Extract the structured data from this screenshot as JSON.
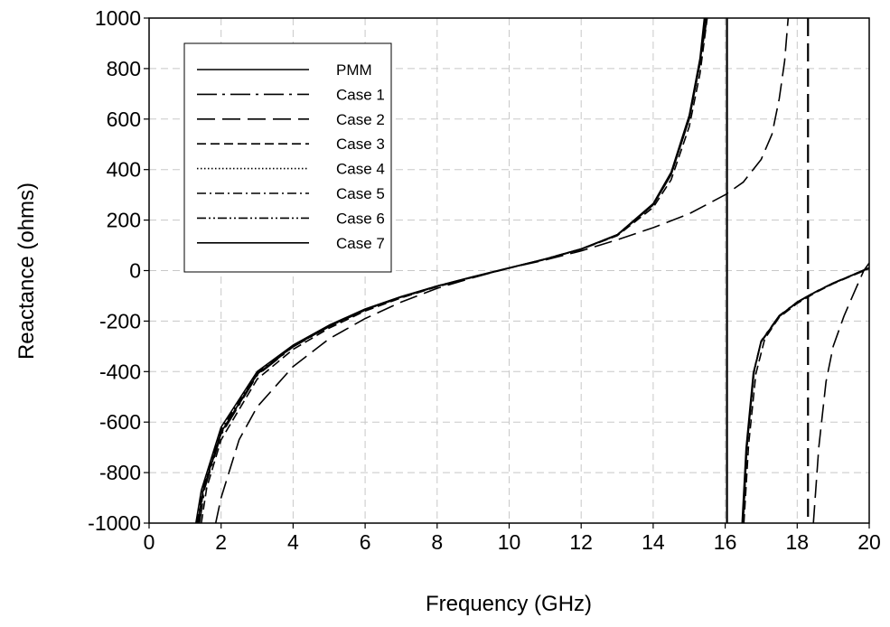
{
  "chart_data": {
    "type": "line",
    "title": "",
    "xlabel": "Frequency (GHz)",
    "ylabel": "Reactance (ohms)",
    "xlim": [
      0,
      20
    ],
    "ylim": [
      -1000,
      1000
    ],
    "x_ticks": [
      0,
      2,
      4,
      6,
      8,
      10,
      12,
      14,
      16,
      18,
      20
    ],
    "y_ticks": [
      -1000,
      -800,
      -600,
      -400,
      -200,
      0,
      200,
      400,
      600,
      800,
      1000
    ],
    "grid": "dashed, both axes",
    "legend_position": "top-left",
    "series": [
      {
        "name": "PMM",
        "dash": "solid",
        "points": [
          [
            1.35,
            -1000
          ],
          [
            1.5,
            -870
          ],
          [
            2,
            -640
          ],
          [
            3,
            -410
          ],
          [
            4,
            -300
          ],
          [
            5,
            -220
          ],
          [
            6,
            -155
          ],
          [
            7,
            -105
          ],
          [
            8,
            -62
          ],
          [
            9,
            -25
          ],
          [
            10,
            10
          ],
          [
            11,
            45
          ],
          [
            12,
            85
          ],
          [
            13,
            140
          ],
          [
            14,
            260
          ],
          [
            14.5,
            380
          ],
          [
            15,
            600
          ],
          [
            15.3,
            820
          ],
          [
            15.45,
            1000
          ]
        ],
        "segments2": [
          [
            16.5,
            -1000
          ],
          [
            16.6,
            -700
          ],
          [
            16.8,
            -400
          ],
          [
            17,
            -280
          ],
          [
            17.5,
            -180
          ],
          [
            18,
            -125
          ],
          [
            18.5,
            -85
          ],
          [
            19,
            -50
          ],
          [
            19.5,
            -20
          ],
          [
            20,
            10
          ]
        ],
        "vertical_line": 16.05
      },
      {
        "name": "Case 1",
        "dash": "long-dash-dot",
        "points": [
          [
            1.4,
            -1000
          ],
          [
            1.55,
            -860
          ],
          [
            2,
            -650
          ],
          [
            3,
            -415
          ],
          [
            4,
            -302
          ],
          [
            5,
            -222
          ],
          [
            6,
            -157
          ],
          [
            7,
            -106
          ],
          [
            8,
            -63
          ],
          [
            9,
            -26
          ],
          [
            10,
            10
          ],
          [
            11,
            45
          ],
          [
            12,
            85
          ],
          [
            13,
            142
          ],
          [
            14,
            262
          ],
          [
            14.5,
            385
          ],
          [
            15,
            610
          ],
          [
            15.3,
            830
          ],
          [
            15.5,
            1000
          ]
        ],
        "segments2": [
          [
            16.48,
            -1000
          ],
          [
            16.6,
            -690
          ],
          [
            16.8,
            -395
          ],
          [
            17,
            -278
          ],
          [
            17.5,
            -178
          ],
          [
            18,
            -124
          ],
          [
            18.5,
            -84
          ],
          [
            19,
            -49
          ],
          [
            19.5,
            -19
          ],
          [
            20,
            11
          ]
        ]
      },
      {
        "name": "Case 2",
        "dash": "long-dash",
        "points": [
          [
            1.85,
            -1000
          ],
          [
            2,
            -900
          ],
          [
            2.5,
            -670
          ],
          [
            3,
            -540
          ],
          [
            4,
            -380
          ],
          [
            5,
            -270
          ],
          [
            6,
            -190
          ],
          [
            7,
            -125
          ],
          [
            8,
            -70
          ],
          [
            9,
            -28
          ],
          [
            10,
            10
          ],
          [
            11,
            42
          ],
          [
            12,
            78
          ],
          [
            13,
            122
          ],
          [
            14,
            170
          ],
          [
            15,
            225
          ],
          [
            16,
            300
          ],
          [
            16.5,
            350
          ],
          [
            17,
            440
          ],
          [
            17.3,
            540
          ],
          [
            17.5,
            680
          ],
          [
            17.65,
            830
          ],
          [
            17.75,
            1000
          ]
        ],
        "segments2": [
          [
            18.45,
            -1000
          ],
          [
            18.6,
            -700
          ],
          [
            18.8,
            -440
          ],
          [
            19,
            -300
          ],
          [
            19.3,
            -180
          ],
          [
            19.6,
            -80
          ],
          [
            19.85,
            0
          ],
          [
            20,
            30
          ]
        ],
        "vertical_line": 18.3
      },
      {
        "name": "Case 3",
        "dash": "dash",
        "points": [
          [
            1.45,
            -1000
          ],
          [
            1.6,
            -860
          ],
          [
            2,
            -670
          ],
          [
            3,
            -430
          ],
          [
            4,
            -312
          ],
          [
            5,
            -228
          ],
          [
            6,
            -160
          ],
          [
            7,
            -108
          ],
          [
            8,
            -64
          ],
          [
            9,
            -26
          ],
          [
            10,
            10
          ],
          [
            11,
            44
          ],
          [
            12,
            84
          ],
          [
            13,
            138
          ],
          [
            14,
            250
          ],
          [
            14.5,
            360
          ],
          [
            15,
            570
          ],
          [
            15.3,
            780
          ],
          [
            15.5,
            1000
          ]
        ],
        "segments2": [
          [
            16.52,
            -1000
          ],
          [
            16.65,
            -690
          ],
          [
            16.85,
            -410
          ],
          [
            17.1,
            -270
          ],
          [
            17.5,
            -185
          ],
          [
            18,
            -130
          ],
          [
            18.5,
            -88
          ],
          [
            19,
            -52
          ],
          [
            19.5,
            -22
          ],
          [
            20,
            8
          ]
        ]
      },
      {
        "name": "Case 4",
        "dash": "dot",
        "points": [
          [
            1.35,
            -1000
          ],
          [
            1.5,
            -870
          ],
          [
            2,
            -640
          ],
          [
            3,
            -410
          ],
          [
            4,
            -300
          ],
          [
            5,
            -220
          ],
          [
            6,
            -155
          ],
          [
            7,
            -105
          ],
          [
            8,
            -62
          ],
          [
            9,
            -25
          ],
          [
            10,
            10
          ],
          [
            11,
            45
          ],
          [
            12,
            85
          ],
          [
            13,
            140
          ],
          [
            14,
            260
          ],
          [
            14.5,
            380
          ],
          [
            15,
            600
          ],
          [
            15.3,
            820
          ],
          [
            15.45,
            1000
          ]
        ],
        "segments2": [
          [
            16.5,
            -1000
          ],
          [
            16.6,
            -700
          ],
          [
            16.8,
            -400
          ],
          [
            17,
            -280
          ],
          [
            17.5,
            -180
          ],
          [
            18,
            -125
          ],
          [
            18.5,
            -85
          ],
          [
            19,
            -50
          ],
          [
            19.5,
            -20
          ],
          [
            20,
            10
          ]
        ]
      },
      {
        "name": "Case 5",
        "dash": "dash-dot",
        "points": [
          [
            1.33,
            -1000
          ],
          [
            1.5,
            -860
          ],
          [
            2,
            -630
          ],
          [
            3,
            -405
          ],
          [
            4,
            -297
          ],
          [
            5,
            -218
          ],
          [
            6,
            -154
          ],
          [
            7,
            -104
          ],
          [
            8,
            -61
          ],
          [
            9,
            -25
          ],
          [
            10,
            10
          ],
          [
            11,
            46
          ],
          [
            12,
            86
          ],
          [
            13,
            141
          ],
          [
            14,
            262
          ],
          [
            14.5,
            383
          ],
          [
            15,
            605
          ],
          [
            15.3,
            825
          ],
          [
            15.45,
            1000
          ]
        ],
        "segments2": [
          [
            16.49,
            -1000
          ],
          [
            16.6,
            -705
          ],
          [
            16.8,
            -402
          ],
          [
            17,
            -281
          ],
          [
            17.5,
            -181
          ],
          [
            18,
            -126
          ],
          [
            18.5,
            -86
          ],
          [
            19,
            -51
          ],
          [
            19.5,
            -20
          ],
          [
            20,
            10
          ]
        ]
      },
      {
        "name": "Case 6",
        "dash": "dash-dot-dot",
        "points": [
          [
            1.37,
            -1000
          ],
          [
            1.52,
            -865
          ],
          [
            2,
            -645
          ],
          [
            3,
            -412
          ],
          [
            4,
            -301
          ],
          [
            5,
            -221
          ],
          [
            6,
            -156
          ],
          [
            7,
            -105
          ],
          [
            8,
            -62
          ],
          [
            9,
            -25
          ],
          [
            10,
            10
          ],
          [
            11,
            45
          ],
          [
            12,
            85
          ],
          [
            13,
            140
          ],
          [
            14,
            261
          ],
          [
            14.5,
            381
          ],
          [
            15,
            602
          ],
          [
            15.3,
            822
          ],
          [
            15.47,
            1000
          ]
        ],
        "segments2": [
          [
            16.5,
            -1000
          ],
          [
            16.6,
            -702
          ],
          [
            16.8,
            -401
          ],
          [
            17,
            -280
          ],
          [
            17.5,
            -180
          ],
          [
            18,
            -125
          ],
          [
            18.5,
            -85
          ],
          [
            19,
            -50
          ],
          [
            19.5,
            -20
          ],
          [
            20,
            10
          ]
        ]
      },
      {
        "name": "Case 7",
        "dash": "solid",
        "points": [
          [
            1.3,
            -1000
          ],
          [
            1.45,
            -870
          ],
          [
            2,
            -620
          ],
          [
            3,
            -400
          ],
          [
            4,
            -295
          ],
          [
            5,
            -216
          ],
          [
            6,
            -152
          ],
          [
            7,
            -103
          ],
          [
            8,
            -61
          ],
          [
            9,
            -24
          ],
          [
            10,
            11
          ],
          [
            11,
            46
          ],
          [
            12,
            86
          ],
          [
            13,
            142
          ],
          [
            14,
            265
          ],
          [
            14.5,
            390
          ],
          [
            15,
            615
          ],
          [
            15.3,
            840
          ],
          [
            15.42,
            1000
          ]
        ],
        "segments2": [
          [
            16.47,
            -1000
          ],
          [
            16.58,
            -705
          ],
          [
            16.78,
            -405
          ],
          [
            17,
            -283
          ],
          [
            17.5,
            -182
          ],
          [
            18,
            -126
          ],
          [
            18.5,
            -85
          ],
          [
            19,
            -50
          ],
          [
            19.5,
            -19
          ],
          [
            20,
            11
          ]
        ]
      }
    ]
  }
}
